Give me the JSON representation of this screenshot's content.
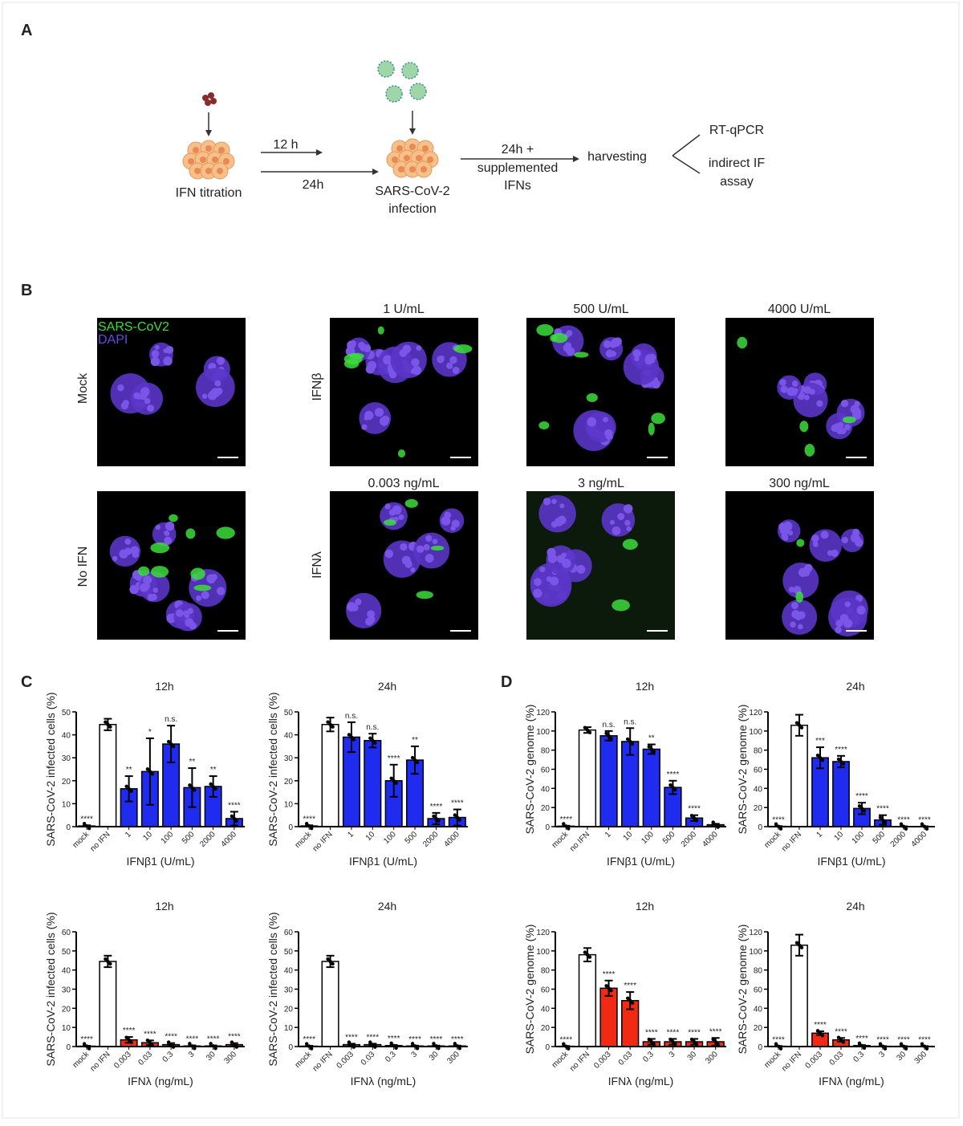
{
  "panel_labels": [
    "A",
    "B",
    "C",
    "D"
  ],
  "panel_a": {
    "start": "IFN titration",
    "arrow_12": "12 h",
    "arrow_24": "24h",
    "infection": [
      "SARS-CoV-2",
      "infection"
    ],
    "treatment": [
      "24h +",
      "supplemented",
      "IFNs"
    ],
    "harvest": "harvesting",
    "readouts": [
      "RT-qPCR",
      "indirect IF",
      "assay"
    ]
  },
  "panel_b": {
    "legend": [
      "SARS-CoV2",
      "DAPI"
    ],
    "rows": [
      "Mock",
      "No IFN",
      "IFNβ",
      "IFNλ"
    ],
    "columns_beta": [
      "1 U/mL",
      "500 U/mL",
      "4000 U/mL"
    ],
    "columns_lambda": [
      "0.003 ng/mL",
      "3 ng/mL",
      "300 ng/mL"
    ]
  },
  "chart_data": [
    {
      "type": "bar",
      "title": "12h",
      "ylabel": "SARS-CoV-2 infected cells (%)",
      "xlabel": "IFNβ1 (U/mL)",
      "categories": [
        "mock",
        "no IFN",
        "1",
        "10",
        "100",
        "500",
        "2000",
        "4000"
      ],
      "values": [
        0.3,
        44.5,
        16.5,
        24,
        36,
        17,
        17.5,
        3.5
      ],
      "errors": [
        0.3,
        2.5,
        5.5,
        14.5,
        8,
        8.5,
        4.5,
        3
      ],
      "annotations": [
        "****",
        null,
        "**",
        "*",
        "n.s.",
        "**",
        "**",
        "****"
      ],
      "colors": [
        "#ffffff",
        "#ffffff",
        "#1f2cf0",
        "#1f2cf0",
        "#1f2cf0",
        "#1f2cf0",
        "#1f2cf0",
        "#1f2cf0"
      ],
      "ylim": [
        0,
        50
      ],
      "yticks": [
        0,
        10,
        20,
        30,
        40,
        50
      ]
    },
    {
      "type": "bar",
      "title": "24h",
      "ylabel": "SARS-CoV-2 infected cells (%)",
      "xlabel": "IFNβ1 (U/mL)",
      "categories": [
        "mock",
        "no IFN",
        "1",
        "10",
        "100",
        "500",
        "2000",
        "4000"
      ],
      "values": [
        0.3,
        44.5,
        39,
        37.5,
        20,
        29,
        3.5,
        4
      ],
      "errors": [
        0.3,
        3,
        6.5,
        3,
        7,
        6,
        2.5,
        3.5
      ],
      "annotations": [
        "****",
        null,
        "n.s.",
        "n.s.",
        "****",
        "**",
        "****",
        "****"
      ],
      "colors": [
        "#ffffff",
        "#ffffff",
        "#1f2cf0",
        "#1f2cf0",
        "#1f2cf0",
        "#1f2cf0",
        "#1f2cf0",
        "#1f2cf0"
      ],
      "ylim": [
        0,
        50
      ],
      "yticks": [
        0,
        10,
        20,
        30,
        40,
        50
      ]
    },
    {
      "type": "bar",
      "title": "12h",
      "ylabel": "SARS-CoV-2 infected cells (%)",
      "xlabel": "IFNλ (ng/mL)",
      "categories": [
        "mock",
        "no IFN",
        "0.003",
        "0.03",
        "0.3",
        "3",
        "30",
        "300"
      ],
      "values": [
        0.2,
        44.5,
        3.5,
        2,
        1,
        0.3,
        0.3,
        1
      ],
      "errors": [
        0.2,
        3,
        1.5,
        1.2,
        0.8,
        0.3,
        0.3,
        0.8
      ],
      "annotations": [
        "****",
        null,
        "****",
        "****",
        "****",
        "****",
        "****",
        "****"
      ],
      "colors": [
        "#ffffff",
        "#ffffff",
        "#f22a14",
        "#f22a14",
        "#f22a14",
        "#f22a14",
        "#f22a14",
        "#f22a14"
      ],
      "ylim": [
        0,
        60
      ],
      "yticks": [
        0,
        10,
        20,
        30,
        40,
        50,
        60
      ]
    },
    {
      "type": "bar",
      "title": "24h",
      "ylabel": "SARS-CoV-2 infected cells (%)",
      "xlabel": "IFNλ (ng/mL)",
      "categories": [
        "mock",
        "no IFN",
        "0.003",
        "0.03",
        "0.3",
        "3",
        "30",
        "300"
      ],
      "values": [
        0.2,
        44.5,
        1,
        1,
        0.5,
        0.3,
        0.3,
        0.3
      ],
      "errors": [
        0.2,
        3,
        0.5,
        0.5,
        0.3,
        0.2,
        0.2,
        0.2
      ],
      "annotations": [
        "****",
        null,
        "****",
        "****",
        "****",
        "****",
        "****",
        "****"
      ],
      "colors": [
        "#ffffff",
        "#ffffff",
        "#f22a14",
        "#f22a14",
        "#f22a14",
        "#f22a14",
        "#f22a14",
        "#f22a14"
      ],
      "ylim": [
        0,
        60
      ],
      "yticks": [
        0,
        10,
        20,
        30,
        40,
        50,
        60
      ]
    },
    {
      "type": "bar",
      "title": "12h",
      "ylabel": "SARS-CoV-2 genome (%)",
      "xlabel": "IFNβ1 (U/mL)",
      "categories": [
        "mock",
        "no IFN",
        "1",
        "10",
        "100",
        "500",
        "2000",
        "4000"
      ],
      "values": [
        0.5,
        101,
        95,
        89,
        81,
        41,
        9,
        2
      ],
      "errors": [
        0.5,
        3,
        5,
        14,
        5,
        7,
        3,
        1
      ],
      "annotations": [
        "****",
        null,
        "n.s.",
        "n.s.",
        "**",
        "****",
        "****",
        null
      ],
      "colors": [
        "#ffffff",
        "#ffffff",
        "#1f2cf0",
        "#1f2cf0",
        "#1f2cf0",
        "#1f2cf0",
        "#1f2cf0",
        "#1f2cf0"
      ],
      "ylim": [
        0,
        120
      ],
      "yticks": [
        0,
        20,
        40,
        60,
        80,
        100,
        120
      ]
    },
    {
      "type": "bar",
      "title": "24h",
      "ylabel": "SARS-CoV-2 genome (%)",
      "xlabel": "IFNβ1 (U/mL)",
      "categories": [
        "mock",
        "no IFN",
        "1",
        "10",
        "100",
        "500",
        "2000",
        "4000"
      ],
      "values": [
        0.3,
        106,
        72,
        68,
        19,
        7,
        0.2,
        0.2
      ],
      "errors": [
        0.3,
        11,
        11,
        6,
        6,
        5,
        0.2,
        0.2
      ],
      "annotations": [
        "****",
        null,
        "***",
        "****",
        "****",
        "****",
        "****",
        "****"
      ],
      "colors": [
        "#ffffff",
        "#ffffff",
        "#1f2cf0",
        "#1f2cf0",
        "#1f2cf0",
        "#1f2cf0",
        "#1f2cf0",
        "#1f2cf0"
      ],
      "ylim": [
        0,
        120
      ],
      "yticks": [
        0,
        20,
        40,
        60,
        80,
        100,
        120
      ]
    },
    {
      "type": "bar",
      "title": "12h",
      "ylabel": "SARS-CoV-2 genome (%)",
      "xlabel": "IFNλ (ng/mL)",
      "categories": [
        "mock",
        "no IFN",
        "0.003",
        "0.03",
        "0.3",
        "3",
        "30",
        "300"
      ],
      "values": [
        0.3,
        96,
        61,
        48,
        5,
        5,
        5,
        5
      ],
      "errors": [
        0.3,
        7,
        8,
        9,
        3,
        3,
        3,
        4
      ],
      "annotations": [
        "****",
        null,
        "****",
        "****",
        "****",
        "****",
        "****",
        "****"
      ],
      "colors": [
        "#ffffff",
        "#ffffff",
        "#f22a14",
        "#f22a14",
        "#f22a14",
        "#f22a14",
        "#f22a14",
        "#f22a14"
      ],
      "ylim": [
        0,
        120
      ],
      "yticks": [
        0,
        20,
        40,
        60,
        80,
        100,
        120
      ]
    },
    {
      "type": "bar",
      "title": "24h",
      "ylabel": "SARS-CoV-2 genome (%)",
      "xlabel": "IFNλ (ng/mL)",
      "categories": [
        "mock",
        "no IFN",
        "0.003",
        "0.03",
        "0.3",
        "3",
        "30",
        "300"
      ],
      "values": [
        0.3,
        106,
        14,
        7,
        1,
        0.3,
        0.3,
        0.3
      ],
      "errors": [
        0.3,
        11,
        2,
        2,
        0.5,
        0.2,
        0.2,
        0.2
      ],
      "annotations": [
        "****",
        null,
        "****",
        "****",
        "****",
        "****",
        "****",
        "****"
      ],
      "colors": [
        "#ffffff",
        "#ffffff",
        "#f22a14",
        "#f22a14",
        "#f22a14",
        "#f22a14",
        "#f22a14",
        "#f22a14"
      ],
      "ylim": [
        0,
        120
      ],
      "yticks": [
        0,
        20,
        40,
        60,
        80,
        100,
        120
      ]
    }
  ]
}
